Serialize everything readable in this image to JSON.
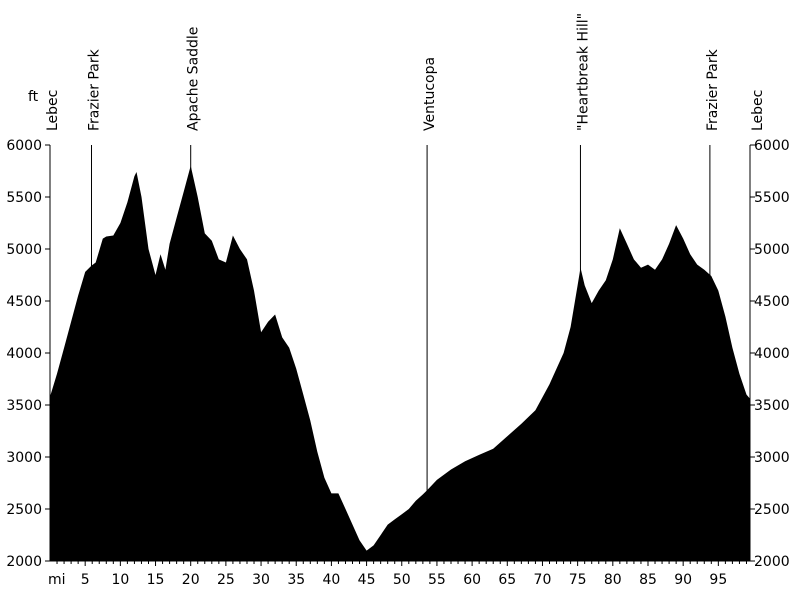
{
  "chart_data": {
    "type": "area",
    "title": "",
    "xlabel": "mi",
    "ylabel": "ft",
    "xlim": [
      0,
      99.5
    ],
    "ylim": [
      2000,
      6000
    ],
    "grid": false,
    "legend": "none",
    "fill_color": "#000000",
    "line_color": "#000000",
    "y_ticks": [
      "2000",
      "2500",
      "3000",
      "3500",
      "4000",
      "4500",
      "5000",
      "5500",
      "6000"
    ],
    "x_ticks": [
      "5",
      "10",
      "15",
      "20",
      "25",
      "30",
      "35",
      "40",
      "45",
      "50",
      "55",
      "60",
      "65",
      "70",
      "75",
      "80",
      "85",
      "90",
      "95"
    ],
    "landmarks": [
      {
        "name": "Lebec",
        "x": 0,
        "marker": false
      },
      {
        "name": "Frazier Park",
        "x": 5.9,
        "marker": true
      },
      {
        "name": "Apache Saddle",
        "x": 20.0,
        "marker": true
      },
      {
        "name": "Ventucopa",
        "x": 53.6,
        "marker": true
      },
      {
        "name": "\"Heartbreak Hill\"",
        "x": 75.4,
        "marker": true
      },
      {
        "name": "Frazier Park",
        "x": 93.8,
        "marker": true
      },
      {
        "name": "Lebec",
        "x": 99.5,
        "marker": false
      }
    ],
    "series": [
      {
        "x": [
          0,
          1,
          2,
          3,
          4,
          5,
          5.9,
          6.5,
          7.5,
          8,
          9,
          10,
          11,
          12,
          12.3,
          13,
          14,
          15,
          15.7,
          16.4,
          17,
          18,
          19,
          20,
          21,
          22,
          23,
          24,
          25,
          26,
          27,
          28,
          29,
          30,
          31,
          32,
          33,
          34,
          35,
          36,
          37,
          38,
          39,
          40,
          41,
          42,
          43,
          44,
          45,
          46,
          47,
          48,
          49,
          50,
          51,
          52,
          53,
          53.6,
          55,
          57,
          59,
          61,
          63,
          65,
          67,
          69,
          71,
          73,
          74,
          75,
          75.4,
          76,
          77,
          78,
          79,
          80,
          81,
          82,
          83,
          84,
          85,
          86,
          87,
          88,
          89,
          90,
          91,
          92,
          93,
          94,
          95,
          96,
          97,
          98,
          99,
          99.5
        ],
        "y": [
          3580,
          3800,
          4050,
          4300,
          4550,
          4780,
          4840,
          4870,
          5100,
          5120,
          5130,
          5250,
          5450,
          5700,
          5740,
          5500,
          5000,
          4750,
          4950,
          4800,
          5050,
          5300,
          5550,
          5800,
          5500,
          5150,
          5080,
          4900,
          4870,
          5130,
          5000,
          4900,
          4600,
          4200,
          4300,
          4370,
          4150,
          4050,
          3850,
          3600,
          3350,
          3050,
          2800,
          2650,
          2650,
          2500,
          2350,
          2200,
          2100,
          2150,
          2250,
          2350,
          2400,
          2450,
          2500,
          2580,
          2640,
          2680,
          2780,
          2880,
          2960,
          3020,
          3080,
          3200,
          3320,
          3450,
          3700,
          4000,
          4250,
          4650,
          4820,
          4650,
          4480,
          4600,
          4700,
          4900,
          5200,
          5050,
          4900,
          4820,
          4850,
          4800,
          4900,
          5050,
          5230,
          5100,
          4950,
          4850,
          4800,
          4740,
          4600,
          4350,
          4050,
          3800,
          3600,
          3560
        ]
      }
    ]
  }
}
